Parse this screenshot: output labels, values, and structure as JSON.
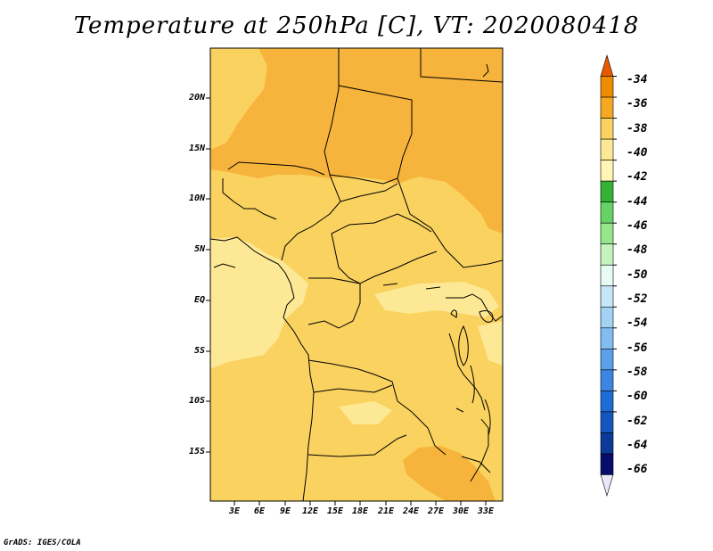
{
  "title": "Temperature at 250hPa [C], VT: 2020080418",
  "credit": "GrADS: IGES/COLA",
  "map": {
    "lat_labels": [
      "20N",
      "15N",
      "10N",
      "5N",
      "EQ",
      "5S",
      "10S",
      "15S"
    ],
    "lon_labels": [
      "3E",
      "6E",
      "9E",
      "12E",
      "15E",
      "18E",
      "21E",
      "24E",
      "27E",
      "30E",
      "33E"
    ]
  },
  "colorbar": {
    "labels": [
      "-34",
      "-36",
      "-38",
      "-40",
      "-42",
      "-44",
      "-46",
      "-48",
      "-50",
      "-52",
      "-54",
      "-56",
      "-58",
      "-60",
      "-62",
      "-64",
      "-66"
    ],
    "colors": [
      "#e85a00",
      "#f08c00",
      "#f7a823",
      "#fad25f",
      "#fde895",
      "#fff5b5",
      "#34b234",
      "#64d264",
      "#96e68c",
      "#c4f4bc",
      "#e8fbf5",
      "#c4e6f8",
      "#a4d2f4",
      "#82bcf0",
      "#5aa0ea",
      "#3a86e2",
      "#1e6cd6",
      "#1456c0",
      "#0c3a98",
      "#080c6a",
      "#e8e8f8"
    ]
  }
}
